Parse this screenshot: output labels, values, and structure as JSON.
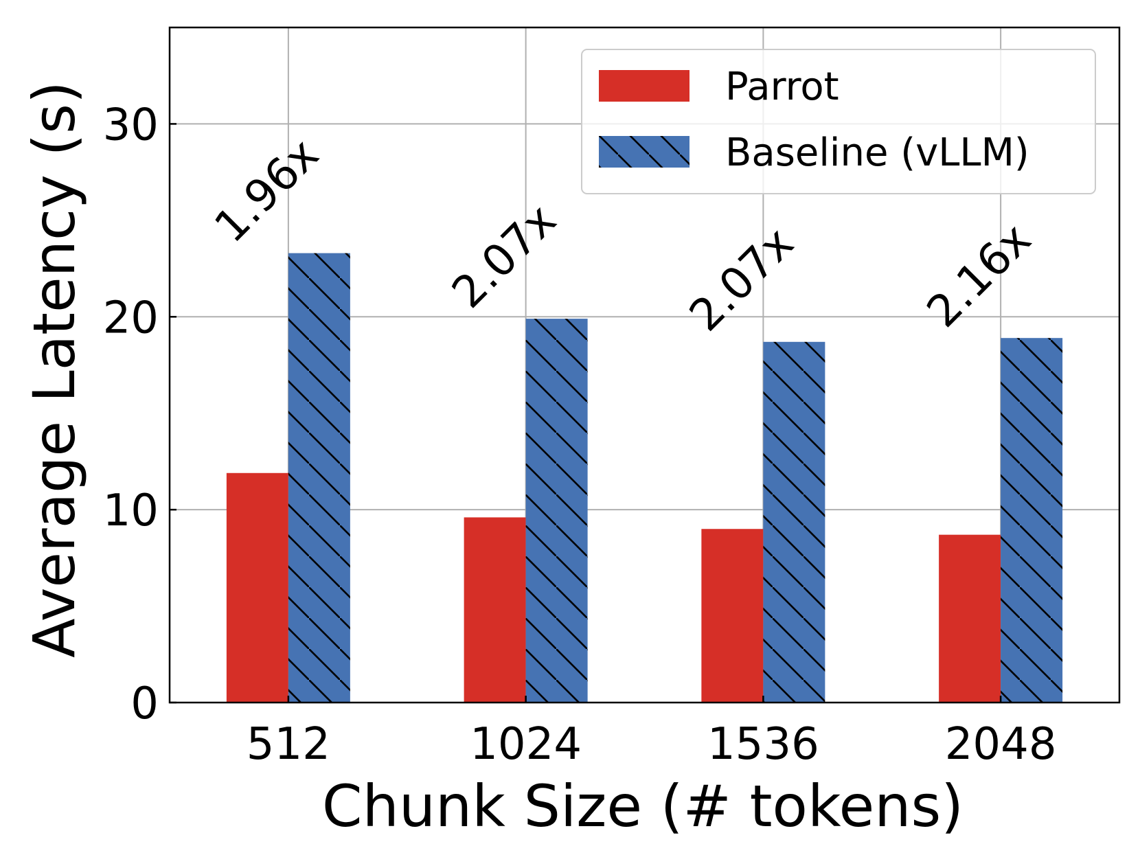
{
  "colors": {
    "parrot": "#d62f27",
    "baseline": "#4673b3",
    "grid": "#b0b0b0",
    "axis": "#000000",
    "hatch": "#000000"
  },
  "chart_data": {
    "type": "bar",
    "title": "",
    "xlabel": "Chunk Size (# tokens)",
    "ylabel": "Average Latency (s)",
    "categories": [
      "512",
      "1024",
      "1536",
      "2048"
    ],
    "ylim": [
      0,
      35
    ],
    "yticks": [
      0,
      10,
      20,
      30
    ],
    "grid": true,
    "legend_position": "top-right",
    "series": [
      {
        "name": "Parrot",
        "values": [
          11.9,
          9.6,
          9.0,
          8.7
        ],
        "color": "#d62f27",
        "hatch": "none"
      },
      {
        "name": "Baseline (vLLM)",
        "values": [
          23.3,
          19.9,
          18.7,
          18.9
        ],
        "color": "#4673b3",
        "hatch": "backslash"
      }
    ],
    "annotations": [
      "1.96x",
      "2.07x",
      "2.07x",
      "2.16x"
    ]
  }
}
